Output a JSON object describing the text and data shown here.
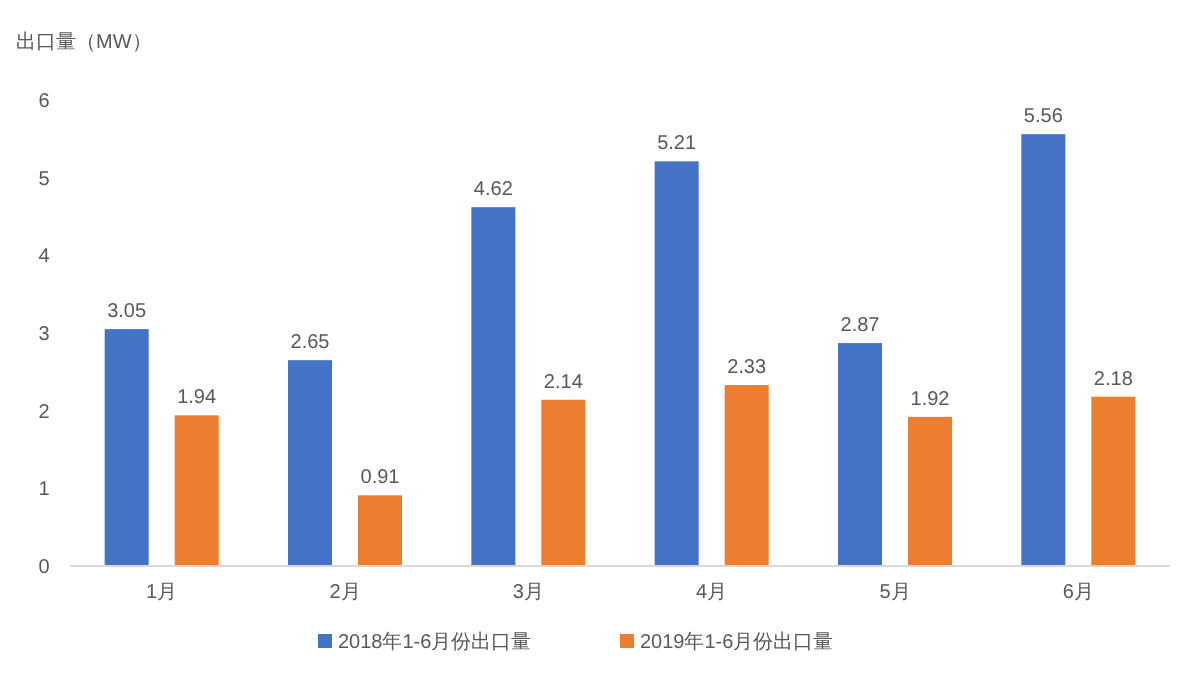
{
  "chart_data": {
    "type": "bar",
    "ylabel": "出口量（MW）",
    "categories": [
      "1月",
      "2月",
      "3月",
      "4月",
      "5月",
      "6月"
    ],
    "series": [
      {
        "name": "2018年1-6月份出口量",
        "color": "#4472c4",
        "values": [
          3.05,
          2.65,
          4.62,
          5.21,
          2.87,
          5.56
        ]
      },
      {
        "name": "2019年1-6月份出口量",
        "color": "#ed7d31",
        "values": [
          1.94,
          0.91,
          2.14,
          2.33,
          1.92,
          2.18
        ]
      }
    ],
    "ylim": [
      0,
      6
    ],
    "yticks": [
      0,
      1,
      2,
      3,
      4,
      5,
      6
    ],
    "data_labels": true,
    "legend": "bottom"
  }
}
